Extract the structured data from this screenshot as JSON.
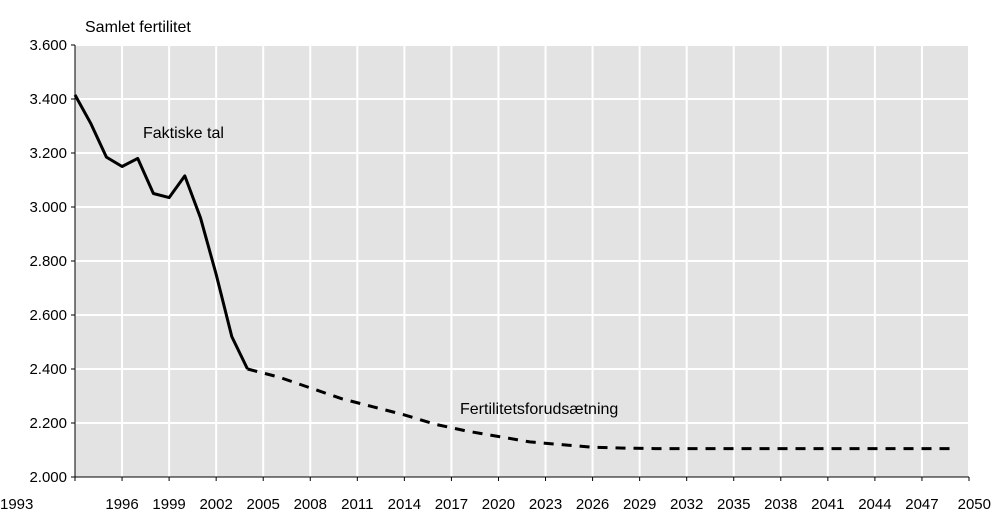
{
  "chart_data": {
    "type": "line",
    "title": "",
    "ylabel": "Samlet fertilitet",
    "xlabel": "",
    "xlim": [
      1993,
      2050
    ],
    "ylim": [
      2000,
      3600
    ],
    "y_ticks": [
      2000,
      2200,
      2400,
      2600,
      2800,
      3000,
      3200,
      3400,
      3600
    ],
    "y_tick_labels": [
      "2.000",
      "2.200",
      "2.400",
      "2.600",
      "2.800",
      "3.000",
      "3.200",
      "3.400",
      "3.600"
    ],
    "x_ticks": [
      1993,
      1996,
      1999,
      2002,
      2005,
      2008,
      2011,
      2014,
      2017,
      2020,
      2023,
      2026,
      2029,
      2032,
      2035,
      2038,
      2041,
      2044,
      2047,
      2050
    ],
    "x_tick_labels": [
      "1993",
      "1996",
      "1999",
      "2002",
      "2005",
      "2008",
      "2011",
      "2014",
      "2017",
      "2020",
      "2023",
      "2026",
      "2029",
      "2032",
      "2035",
      "2038",
      "2041",
      "2044",
      "2047",
      "2050"
    ],
    "grid": true,
    "background": "#e3e3e3",
    "series": [
      {
        "label": "Faktiske tal",
        "style": "solid",
        "color": "#000000",
        "x": [
          1993,
          1994,
          1995,
          1996,
          1997,
          1998,
          1999,
          2000,
          2001,
          2002,
          2003,
          2004
        ],
        "y": [
          3415,
          3310,
          3185,
          3150,
          3180,
          3050,
          3035,
          3115,
          2960,
          2750,
          2520,
          2400
        ]
      },
      {
        "label": "Fertilitetsforudsætning",
        "style": "dashed",
        "color": "#000000",
        "x": [
          2004,
          2006,
          2008,
          2010,
          2012,
          2014,
          2016,
          2018,
          2020,
          2022,
          2024,
          2026,
          2028,
          2030,
          2035,
          2040,
          2045,
          2049
        ],
        "y": [
          2400,
          2370,
          2330,
          2290,
          2260,
          2230,
          2195,
          2170,
          2150,
          2130,
          2120,
          2110,
          2107,
          2105,
          2105,
          2105,
          2105,
          2105
        ]
      }
    ]
  }
}
